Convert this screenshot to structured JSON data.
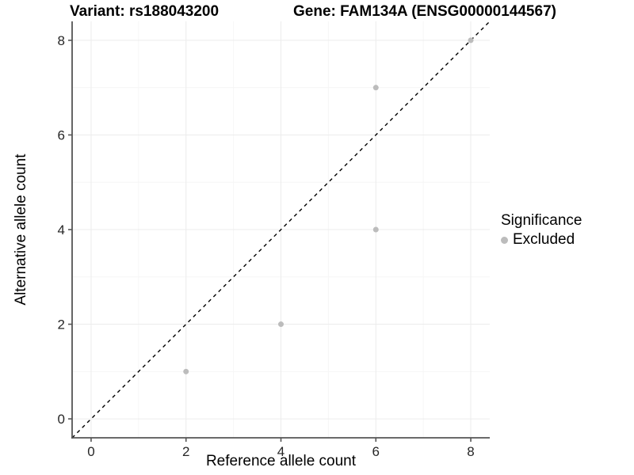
{
  "titles": {
    "variant": "Variant: rs188043200",
    "gene": "Gene: FAM134A (ENSG00000144567)"
  },
  "axes": {
    "x_label": "Reference allele count",
    "y_label": "Alternative allele count"
  },
  "legend": {
    "title": "Significance",
    "items": [
      {
        "label": "Excluded",
        "color": "#bcbcbc"
      }
    ]
  },
  "colors": {
    "point": "#bcbcbc",
    "grid_major": "#ececec",
    "grid_minor": "#f6f6f6",
    "axis_line": "#555555",
    "tick_label": "#262626",
    "reference_line": "#000000",
    "background": "#ffffff"
  },
  "chart_data": {
    "type": "scatter",
    "title": "Variant: rs188043200   Gene: FAM134A (ENSG00000144567)",
    "xlabel": "Reference allele count",
    "ylabel": "Alternative allele count",
    "x_ticks": [
      0,
      2,
      4,
      6,
      8
    ],
    "y_ticks": [
      0,
      2,
      4,
      6,
      8
    ],
    "xlim": [
      -0.4,
      8.4
    ],
    "ylim": [
      -0.4,
      8.4
    ],
    "grid": true,
    "legend_position": "right",
    "reference_line": {
      "type": "identity",
      "slope": 1,
      "intercept": 0,
      "style": "dashed"
    },
    "series": [
      {
        "name": "Excluded",
        "color": "#bcbcbc",
        "points": [
          [
            2,
            1
          ],
          [
            4,
            2
          ],
          [
            6,
            4
          ],
          [
            6,
            7
          ],
          [
            8,
            8
          ]
        ]
      }
    ]
  }
}
